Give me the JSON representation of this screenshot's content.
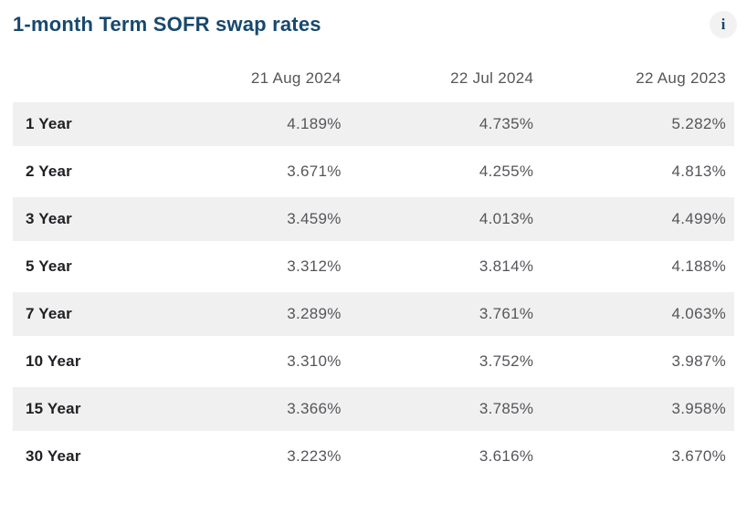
{
  "header": {
    "title": "1-month Term SOFR swap rates",
    "info_icon_glyph": "i"
  },
  "colors": {
    "title_navy": "#17486e",
    "header_text": "#55565a",
    "value_text": "#55565a",
    "label_text": "#1f2023",
    "row_stripe": "#f0f0f0",
    "info_icon_bg": "#f2f2f2"
  },
  "chart_data": {
    "type": "table",
    "title": "1-month Term SOFR swap rates",
    "columns": [
      "",
      "21 Aug 2024",
      "22 Jul 2024",
      "22 Aug 2023"
    ],
    "row_labels": [
      "1 Year",
      "2 Year",
      "3 Year",
      "5 Year",
      "7 Year",
      "10 Year",
      "15 Year",
      "30 Year"
    ],
    "rows": [
      {
        "label": "1 Year",
        "values": [
          "4.189%",
          "4.735%",
          "5.282%"
        ]
      },
      {
        "label": "2 Year",
        "values": [
          "3.671%",
          "4.255%",
          "4.813%"
        ]
      },
      {
        "label": "3 Year",
        "values": [
          "3.459%",
          "4.013%",
          "4.499%"
        ]
      },
      {
        "label": "5 Year",
        "values": [
          "3.312%",
          "3.814%",
          "4.188%"
        ]
      },
      {
        "label": "7 Year",
        "values": [
          "3.289%",
          "3.761%",
          "4.063%"
        ]
      },
      {
        "label": "10 Year",
        "values": [
          "3.310%",
          "3.752%",
          "3.987%"
        ]
      },
      {
        "label": "15 Year",
        "values": [
          "3.366%",
          "3.785%",
          "3.958%"
        ]
      },
      {
        "label": "30 Year",
        "values": [
          "3.223%",
          "3.616%",
          "3.670%"
        ]
      }
    ],
    "layout_hints": {
      "stripe_pattern": "odd rows shaded",
      "value_alignment": "right",
      "grid": false
    }
  }
}
